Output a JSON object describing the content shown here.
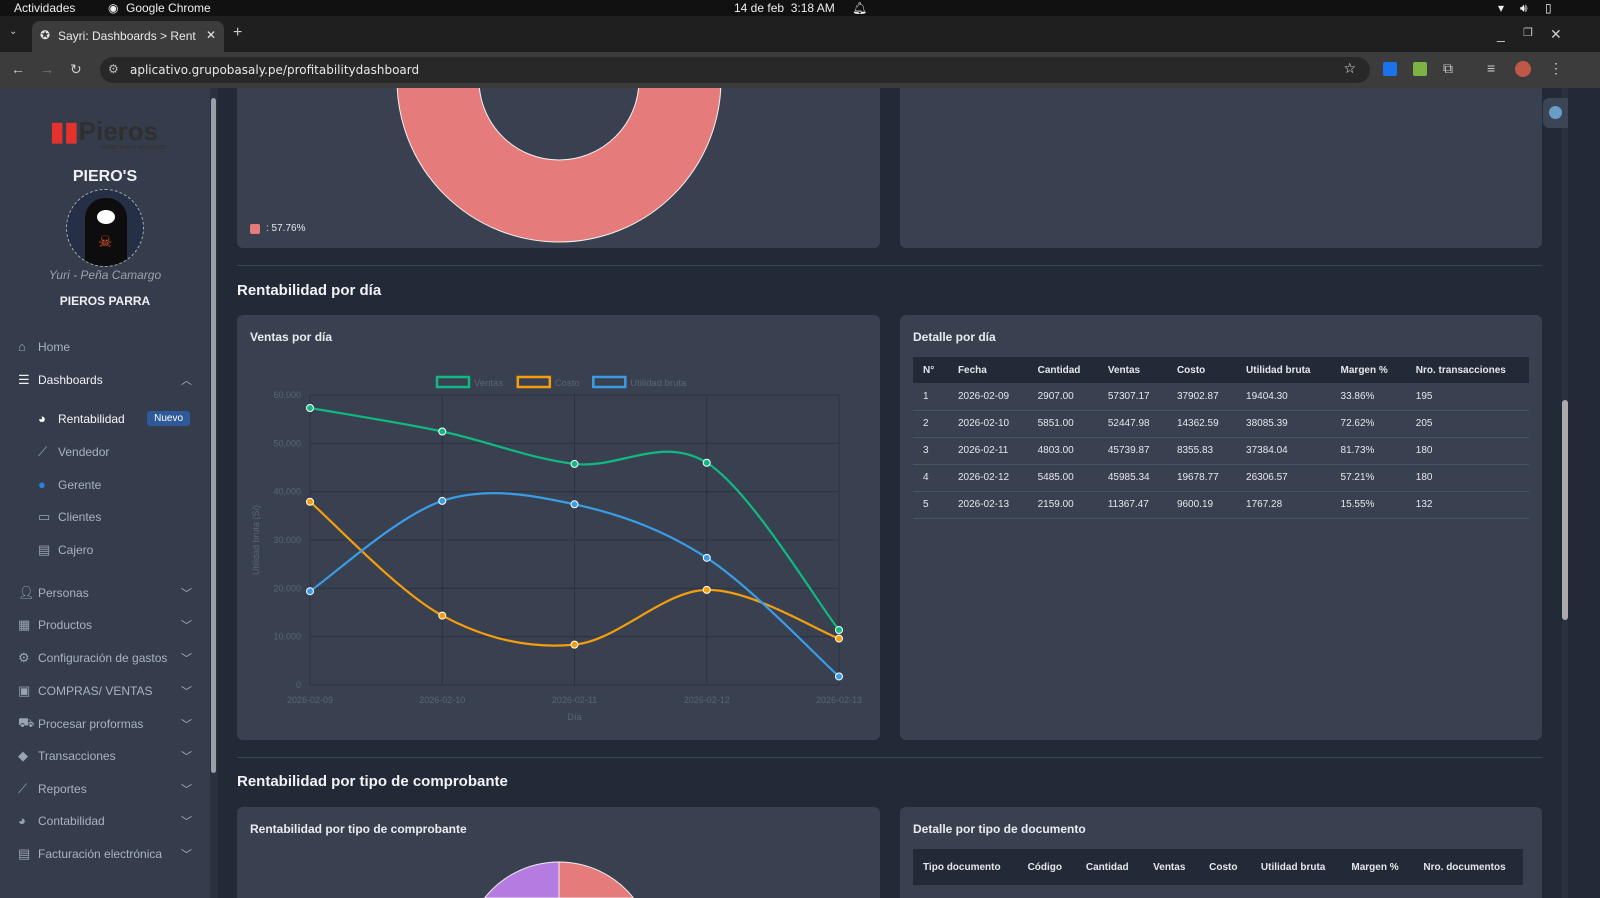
{
  "os": {
    "activities": "Actividades",
    "app": "Google Chrome",
    "clock": "14 de feb  3:18 AM"
  },
  "browser": {
    "tab_title": "Sayri: Dashboards > Rent",
    "url": "aplicativo.grupobasaly.pe/profitabilitydashboard"
  },
  "sidebar": {
    "logo": "Pieros",
    "logo_sub": "FERRETERÍA Y ACABADOS",
    "company": "PIERO'S",
    "user": "Yuri - Peña Camargo",
    "branch": "PIEROS PARRA",
    "items": [
      {
        "label": "Home",
        "icon": "home-icon"
      },
      {
        "label": "Dashboards",
        "icon": "sliders-icon"
      },
      {
        "label": "Rentabilidad",
        "icon": "pie-chart-icon",
        "badge": "Nuevo"
      },
      {
        "label": "Vendedor",
        "icon": "line-chart-icon"
      },
      {
        "label": "Gerente",
        "icon": "user-tie-icon"
      },
      {
        "label": "Clientes",
        "icon": "chalkboard-user-icon"
      },
      {
        "label": "Cajero",
        "icon": "cash-register-icon"
      },
      {
        "label": "Personas",
        "icon": "users-icon"
      },
      {
        "label": "Productos",
        "icon": "boxes-icon"
      },
      {
        "label": "Configuración de gastos",
        "icon": "gears-icon"
      },
      {
        "label": "COMPRAS/ VENTAS",
        "icon": "clipboard-icon"
      },
      {
        "label": "Procesar proformas",
        "icon": "dolly-icon"
      },
      {
        "label": "Transacciones",
        "icon": "tags-icon"
      },
      {
        "label": "Reportes",
        "icon": "chart-line-icon"
      },
      {
        "label": "Contabilidad",
        "icon": "chart-pie-icon"
      },
      {
        "label": "Facturación electrónica",
        "icon": "file-invoice-icon"
      }
    ]
  },
  "top_donut": {
    "legend": ": 57.76%",
    "color": "#e57c7b"
  },
  "section_day": {
    "title": "Rentabilidad por día",
    "chart_title": "Ventas por día",
    "table_title": "Detalle por día"
  },
  "chart_data": {
    "type": "line",
    "categories": [
      "2026-02-09",
      "2026-02-10",
      "2026-02-11",
      "2026-02-12",
      "2026-02-13"
    ],
    "series": [
      {
        "name": "Ventas",
        "color": "#10b981",
        "values": [
          57307.17,
          52447.98,
          45739.87,
          45985.34,
          11367.47
        ]
      },
      {
        "name": "Costo",
        "color": "#f59e0b",
        "values": [
          37902.87,
          14362.59,
          8355.83,
          19678.77,
          9600.19
        ]
      },
      {
        "name": "Utilidad bruta",
        "color": "#3b9ce6",
        "values": [
          19404.3,
          38085.39,
          37384.04,
          26306.57,
          1767.28
        ]
      }
    ],
    "xlabel": "Día",
    "ylabel": "Utilidad bruta (S/)",
    "ylim": [
      0,
      60000
    ],
    "yticks": [
      "0",
      "10,000",
      "20,000",
      "30,000",
      "40,000",
      "50,000",
      "60,000"
    ],
    "grid": true,
    "legend": "top"
  },
  "day_table": {
    "headers": [
      "N°",
      "Fecha",
      "Cantidad",
      "Ventas",
      "Costo",
      "Utilidad bruta",
      "Margen %",
      "Nro. transacciones"
    ],
    "rows": [
      [
        "1",
        "2026-02-09",
        "2907.00",
        "57307.17",
        "37902.87",
        "19404.30",
        "33.86%",
        "195"
      ],
      [
        "2",
        "2026-02-10",
        "5851.00",
        "52447.98",
        "14362.59",
        "38085.39",
        "72.62%",
        "205"
      ],
      [
        "3",
        "2026-02-11",
        "4803.00",
        "45739.87",
        "8355.83",
        "37384.04",
        "81.73%",
        "180"
      ],
      [
        "4",
        "2026-02-12",
        "5485.00",
        "45985.34",
        "19678.77",
        "26306.57",
        "57.21%",
        "180"
      ],
      [
        "5",
        "2026-02-13",
        "2159.00",
        "11367.47",
        "9600.19",
        "1767.28",
        "15.55%",
        "132"
      ]
    ]
  },
  "section_doc": {
    "title": "Rentabilidad por tipo de comprobante",
    "chart_title": "Rentabilidad por tipo de comprobante",
    "table_title": "Detalle por tipo de documento",
    "headers": [
      "Tipo documento",
      "Código",
      "Cantidad",
      "Ventas",
      "Costo",
      "Utilidad bruta",
      "Margen %",
      "Nro. documentos"
    ],
    "pie_colors": [
      "#e57c7b",
      "#b57be0"
    ]
  }
}
